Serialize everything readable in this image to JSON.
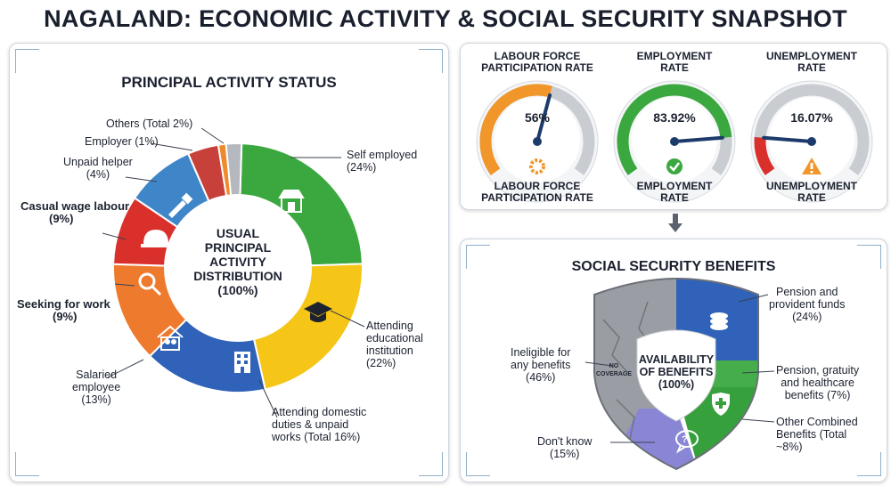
{
  "title": "NAGALAND: ECONOMIC ACTIVITY & SOCIAL SECURITY SNAPSHOT",
  "activity": {
    "title": "PRINCIPAL ACTIVITY STATUS",
    "center": [
      "USUAL",
      "PRINCIPAL",
      "ACTIVITY",
      "DISTRIBUTION",
      "(100%)"
    ],
    "labels": {
      "self_employed": [
        "Self employed",
        "(24%)"
      ],
      "educational": [
        "Attending",
        "educational",
        "institution",
        "(22%)"
      ],
      "domestic": [
        "Attending domestic",
        "duties & unpaid",
        "works (Total 16%)"
      ],
      "salaried": [
        "Salaried",
        "employee",
        "(13%)"
      ],
      "seeking": [
        "Seeking for work",
        "(9%)"
      ],
      "casual": [
        "Casual wage labour",
        "(9%)"
      ],
      "unpaid_helper": [
        "Unpaid helper",
        "(4%)"
      ],
      "employer": [
        "Employer (1%)"
      ],
      "others": [
        "Others (Total 2%)"
      ]
    },
    "segments": [
      {
        "name": "Self employed",
        "value": 24,
        "color": "#3aa83f",
        "icon": "shop-icon"
      },
      {
        "name": "Attending educational institution",
        "value": 22,
        "color": "#f5c518",
        "icon": "graduation-cap-icon"
      },
      {
        "name": "Attending domestic duties & unpaid works",
        "value": 16,
        "color": "#2f62b8",
        "icon": "building-icon"
      },
      {
        "name": "Salaried employee",
        "value": 13,
        "color": "#ee7a2e",
        "icon": "home-family-icon"
      },
      {
        "name": "Seeking for work",
        "value": 9,
        "color": "#d9302c",
        "icon": "magnifier-icon"
      },
      {
        "name": "Casual wage labour",
        "value": 9,
        "color": "#3f86c9",
        "icon": "hardhat-icon"
      },
      {
        "name": "Unpaid helper",
        "value": 4,
        "color": "#c8403a",
        "icon": "tool-icon"
      },
      {
        "name": "Employer",
        "value": 1,
        "color": "#ef8a2c",
        "icon": ""
      },
      {
        "name": "Others",
        "value": 2,
        "color": "#b5b9bf",
        "icon": ""
      }
    ]
  },
  "rates": {
    "gauges": [
      {
        "top_label": [
          "LABOUR FORCE",
          "PARTICIPATION RATE"
        ],
        "value_text": "56%",
        "value": 56,
        "bottom_label": [
          "LABOUR FORCE",
          "PARTICIPATION RATE"
        ],
        "color": "#f0962a",
        "icon": "gear-icon"
      },
      {
        "top_label": [
          "EMPLOYMENT",
          "RATE"
        ],
        "value_text": "83.92%",
        "value": 83.92,
        "bottom_label": [
          "EMPLOYMENT",
          "RATE"
        ],
        "color": "#3aa83f",
        "icon": "checkmark-icon"
      },
      {
        "top_label": [
          "UNEMPLOYMENT",
          "RATE"
        ],
        "value_text": "16.07%",
        "value": 16.07,
        "bottom_label": [
          "UNEMPLOYMENT",
          "RATE"
        ],
        "color": "#d9302c",
        "icon": "warning-icon"
      }
    ]
  },
  "benefits": {
    "title": "SOCIAL SECURITY BENEFITS",
    "center": [
      "AVAILABILITY",
      "OF BENEFITS",
      "(100%)"
    ],
    "no_coverage": [
      "NO",
      "COVERAGE"
    ],
    "labels": {
      "pension": [
        "Pension and",
        "provident funds",
        "(24%)"
      ],
      "gratuity": [
        "Pension, gratuity",
        "and healthcare",
        "benefits (7%)"
      ],
      "other_combined": [
        "Other Combined",
        "Benefits (Total",
        "~8%)"
      ],
      "dont_know": [
        "Don't know",
        "(15%)"
      ],
      "ineligible": [
        "Ineligible for",
        "any benefits",
        "(46%)"
      ]
    },
    "segments": [
      {
        "name": "Ineligible for any benefits",
        "value": 46,
        "color": "#9a9ea4"
      },
      {
        "name": "Pension and provident funds",
        "value": 24,
        "color": "#2f62b8"
      },
      {
        "name": "Pension, gratuity and healthcare benefits",
        "value": 7,
        "color": "#3aa83f"
      },
      {
        "name": "Other Combined Benefits",
        "value": 8,
        "color": "#3aa83f"
      },
      {
        "name": "Don't know",
        "value": 15,
        "color": "#8a86d6"
      }
    ]
  }
}
